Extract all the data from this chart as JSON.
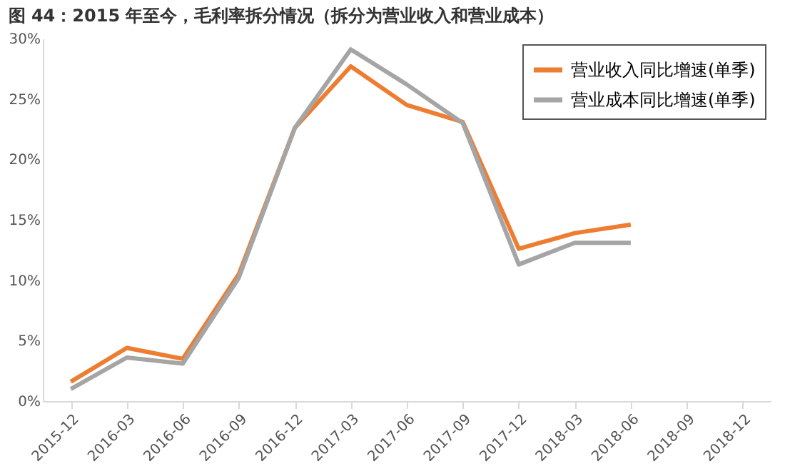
{
  "chart_data": {
    "type": "line",
    "title": "图 44：2015 年至今，毛利率拆分情况（拆分为营业收入和营业成本）",
    "categories": [
      "2015-12",
      "2016-03",
      "2016-06",
      "2016-09",
      "2016-12",
      "2017-03",
      "2017-06",
      "2017-09",
      "2017-12",
      "2018-03",
      "2018-06",
      "2018-09",
      "2018-12"
    ],
    "series": [
      {
        "name": "营业收入同比增速(单季)",
        "color": "#ed7d31",
        "values": [
          1.6,
          4.4,
          3.5,
          10.5,
          22.6,
          27.7,
          24.5,
          23.1,
          12.6,
          13.9,
          14.6,
          null,
          null
        ]
      },
      {
        "name": "营业成本同比增速(单季)",
        "color": "#a5a5a5",
        "values": [
          1.0,
          3.6,
          3.1,
          10.2,
          22.6,
          29.1,
          26.2,
          23.0,
          11.3,
          13.1,
          13.1,
          null,
          null
        ]
      }
    ],
    "ylim": [
      0,
      30
    ],
    "yticks": [
      {
        "value": 0,
        "label": "0%"
      },
      {
        "value": 5,
        "label": "5%"
      },
      {
        "value": 10,
        "label": "10%"
      },
      {
        "value": 15,
        "label": "15%"
      },
      {
        "value": 20,
        "label": "20%"
      },
      {
        "value": 25,
        "label": "25%"
      },
      {
        "value": 30,
        "label": "30%"
      }
    ],
    "grid": false,
    "legend": "top right",
    "marker": "none",
    "line_style": "solid"
  }
}
